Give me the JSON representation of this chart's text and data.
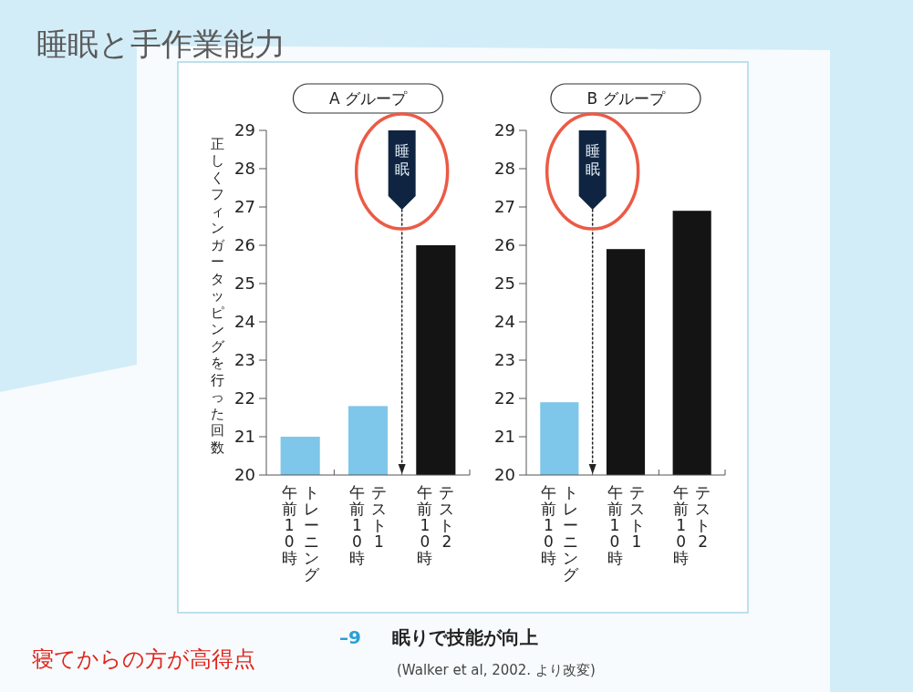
{
  "chart_data": [
    {
      "type": "bar",
      "title": "A グループ",
      "ylabel": "正しくフィンガータッピングを行った回数",
      "categories": [
        "トレーニング",
        "テスト1",
        "テスト2"
      ],
      "values": [
        21.0,
        21.8,
        26.0
      ],
      "colors": [
        "#7ec6ea",
        "#7ec6ea",
        "#141414"
      ],
      "ylim": [
        20,
        29
      ],
      "yticks": [
        20,
        21,
        22,
        23,
        24,
        25,
        26,
        27,
        28,
        29
      ],
      "annotations": [
        "睡眠",
        "午前10時",
        "午前10時",
        "午前10時",
        "睡眠と手作業能力",
        "寝てからの方が高得点",
        "–9",
        "眠りで技能が向上",
        "(Walker et al, 2002. より改変)"
      ]
    },
    {
      "type": "bar",
      "title": "B グループ",
      "categories": [
        "トレーニング",
        "テスト1",
        "テスト2"
      ],
      "values": [
        21.9,
        25.9,
        26.9
      ],
      "colors": [
        "#7ec6ea",
        "#141414",
        "#141414"
      ],
      "ylim": [
        20,
        29
      ],
      "yticks": [
        20,
        21,
        22,
        23,
        24,
        25,
        26,
        27,
        28,
        29
      ],
      "annotations": [
        "睡眠",
        "午前10時",
        "午前10時",
        "午前10時"
      ]
    }
  ]
}
